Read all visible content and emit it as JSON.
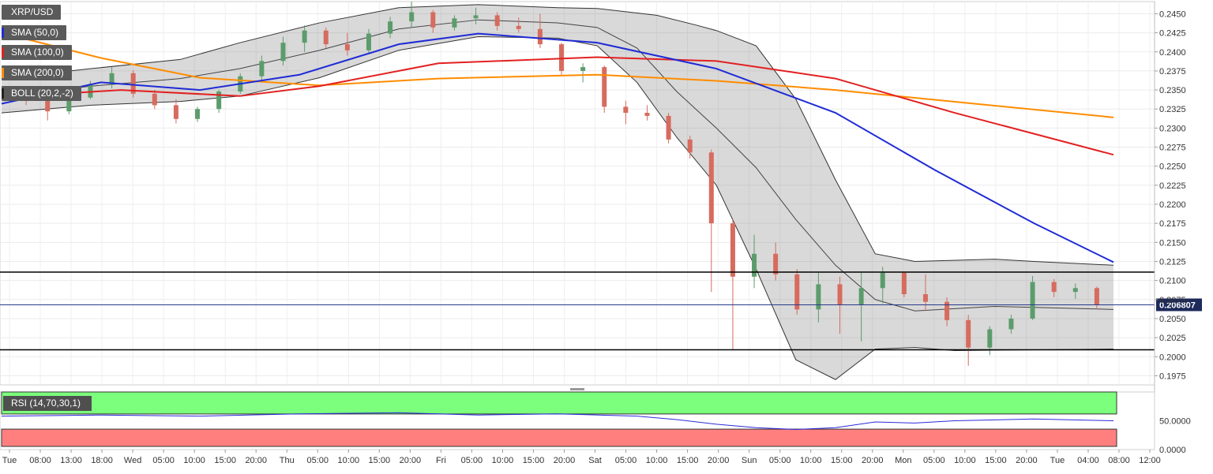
{
  "legend": {
    "symbol": "XRP/USD",
    "indicators": [
      {
        "label": "SMA (50,0)",
        "color": "#1f2bd6"
      },
      {
        "label": "SMA (100,0)",
        "color": "#e32020"
      },
      {
        "label": "SMA (200,0)",
        "color": "#ff8c00"
      },
      {
        "label": "BOLL (20,2,-2)",
        "color": "#222222"
      }
    ]
  },
  "rsi_panel": {
    "label": "RSI (14,70,30,1)",
    "ticks": [
      "50.0000",
      "0.0000"
    ],
    "overbought_color": "#7cff7c",
    "oversold_color": "#ff7f7f",
    "line_color": "#2a2adb"
  },
  "current_price": {
    "label": "0.206807",
    "value": 0.206807
  },
  "chart_data": {
    "type": "candlestick",
    "title": "XRP/USD",
    "y_axis_ticks": [
      0.245,
      0.2425,
      0.24,
      0.2375,
      0.235,
      0.2325,
      0.23,
      0.2275,
      0.225,
      0.2225,
      0.22,
      0.2175,
      0.215,
      0.2125,
      0.21,
      0.2075,
      0.205,
      0.2025,
      0.2,
      0.1975
    ],
    "y_axis_labels": [
      "0.2450",
      "0.2425",
      "0.2400",
      "0.2375",
      "0.2350",
      "0.2325",
      "0.2300",
      "0.2275",
      "0.2250",
      "0.2225",
      "0.2200",
      "0.2175",
      "0.2150",
      "0.2125",
      "0.2100",
      "0.2075",
      "0.2050",
      "0.2025",
      "0.2000",
      "0.1975"
    ],
    "ylim": [
      0.1963,
      0.2466
    ],
    "x_axis_labels": [
      "Tue",
      "08:00",
      "13:00",
      "18:00",
      "Wed",
      "05:00",
      "10:00",
      "15:00",
      "20:00",
      "Thu",
      "05:00",
      "10:00",
      "15:00",
      "20:00",
      "Fri",
      "05:00",
      "10:00",
      "15:00",
      "20:00",
      "Sat",
      "05:00",
      "10:00",
      "15:00",
      "20:00",
      "Sun",
      "05:00",
      "10:00",
      "15:00",
      "20:00",
      "Mon",
      "05:00",
      "10:00",
      "15:00",
      "20:00",
      "Tue",
      "04:00",
      "08:00",
      "12:00"
    ],
    "horizontal_levels": [
      0.2111,
      0.2009
    ],
    "ohlc_x": [
      0,
      4,
      8,
      12,
      16,
      20,
      24,
      28,
      32,
      36,
      40,
      44,
      48,
      52,
      56,
      60,
      64,
      68,
      72,
      76,
      80,
      84,
      88,
      92,
      96,
      100,
      104,
      108,
      112,
      116,
      120,
      124,
      128,
      132,
      136,
      140,
      144,
      148,
      152,
      156,
      160,
      164,
      168,
      172,
      176,
      180,
      184,
      188,
      192,
      196,
      200,
      204
    ],
    "ohlc_price": [
      [
        0.234,
        0.235,
        0.2335,
        0.2345
      ],
      [
        0.2345,
        0.2352,
        0.233,
        0.2336
      ],
      [
        0.2336,
        0.234,
        0.231,
        0.2322
      ],
      [
        0.2322,
        0.2345,
        0.2318,
        0.234
      ],
      [
        0.234,
        0.2362,
        0.2338,
        0.2358
      ],
      [
        0.2358,
        0.238,
        0.2352,
        0.2372
      ],
      [
        0.2372,
        0.2376,
        0.234,
        0.2345
      ],
      [
        0.2345,
        0.235,
        0.2325,
        0.233
      ],
      [
        0.233,
        0.2338,
        0.2306,
        0.2312
      ],
      [
        0.2312,
        0.2328,
        0.2308,
        0.2325
      ],
      [
        0.2325,
        0.235,
        0.232,
        0.2348
      ],
      [
        0.2348,
        0.2372,
        0.2345,
        0.2368
      ],
      [
        0.2368,
        0.2395,
        0.236,
        0.2388
      ],
      [
        0.2388,
        0.242,
        0.2382,
        0.2412
      ],
      [
        0.2412,
        0.2435,
        0.24,
        0.2428
      ],
      [
        0.2428,
        0.2432,
        0.2405,
        0.241
      ],
      [
        0.241,
        0.2425,
        0.2395,
        0.2402
      ],
      [
        0.2402,
        0.243,
        0.2398,
        0.2424
      ],
      [
        0.2424,
        0.2446,
        0.2418,
        0.244
      ],
      [
        0.244,
        0.2466,
        0.2432,
        0.2452
      ],
      [
        0.2452,
        0.2455,
        0.2425,
        0.2432
      ],
      [
        0.2432,
        0.2448,
        0.2428,
        0.2444
      ],
      [
        0.2444,
        0.2458,
        0.2436,
        0.2448
      ],
      [
        0.2448,
        0.2452,
        0.2428,
        0.2434
      ],
      [
        0.2434,
        0.2445,
        0.2425,
        0.243
      ],
      [
        0.243,
        0.245,
        0.2405,
        0.241
      ],
      [
        0.241,
        0.2412,
        0.237,
        0.2375
      ],
      [
        0.2375,
        0.2385,
        0.236,
        0.238
      ],
      [
        0.238,
        0.2382,
        0.232,
        0.2328
      ],
      [
        0.2328,
        0.2336,
        0.2305,
        0.232
      ],
      [
        0.232,
        0.233,
        0.231,
        0.2316
      ],
      [
        0.2316,
        0.232,
        0.228,
        0.2285
      ],
      [
        0.2285,
        0.229,
        0.226,
        0.2268
      ],
      [
        0.2268,
        0.2272,
        0.2085,
        0.2175
      ],
      [
        0.2175,
        0.218,
        0.201,
        0.2105
      ],
      [
        0.2105,
        0.216,
        0.209,
        0.2135
      ],
      [
        0.2135,
        0.215,
        0.21,
        0.2108
      ],
      [
        0.2108,
        0.2115,
        0.2055,
        0.2062
      ],
      [
        0.2062,
        0.211,
        0.2045,
        0.2095
      ],
      [
        0.2095,
        0.2105,
        0.203,
        0.2068
      ],
      [
        0.2068,
        0.211,
        0.202,
        0.209
      ],
      [
        0.209,
        0.2118,
        0.207,
        0.211
      ],
      [
        0.211,
        0.2112,
        0.2078,
        0.2082
      ],
      [
        0.2082,
        0.2108,
        0.206,
        0.2072
      ],
      [
        0.2072,
        0.2078,
        0.204,
        0.2048
      ],
      [
        0.2048,
        0.2055,
        0.1988,
        0.2012
      ],
      [
        0.2012,
        0.204,
        0.2002,
        0.2036
      ],
      [
        0.2036,
        0.2055,
        0.203,
        0.205
      ],
      [
        0.205,
        0.2106,
        0.2048,
        0.2098
      ],
      [
        0.2098,
        0.2102,
        0.2078,
        0.2085
      ],
      [
        0.2085,
        0.2096,
        0.2076,
        0.209
      ],
      [
        0.209,
        0.2092,
        0.2062,
        0.2068
      ]
    ],
    "sma50": [
      [
        0,
        0.2332
      ],
      [
        50,
        0.236
      ],
      [
        100,
        0.235
      ],
      [
        150,
        0.237
      ],
      [
        200,
        0.241
      ],
      [
        240,
        0.2424
      ],
      [
        300,
        0.2412
      ],
      [
        360,
        0.2378
      ],
      [
        420,
        0.232
      ],
      [
        470,
        0.2245
      ],
      [
        520,
        0.2175
      ],
      [
        560,
        0.2124
      ]
    ],
    "sma100": [
      [
        0,
        0.234
      ],
      [
        60,
        0.235
      ],
      [
        120,
        0.2342
      ],
      [
        160,
        0.2355
      ],
      [
        220,
        0.2385
      ],
      [
        300,
        0.2393
      ],
      [
        360,
        0.2388
      ],
      [
        420,
        0.2365
      ],
      [
        480,
        0.232
      ],
      [
        560,
        0.2265
      ]
    ],
    "sma200": [
      [
        0,
        0.2425
      ],
      [
        50,
        0.2392
      ],
      [
        100,
        0.2366
      ],
      [
        160,
        0.2356
      ],
      [
        220,
        0.2365
      ],
      [
        300,
        0.237
      ],
      [
        360,
        0.2362
      ],
      [
        420,
        0.235
      ],
      [
        490,
        0.2332
      ],
      [
        560,
        0.2314
      ]
    ],
    "bollinger_upper": [
      [
        0,
        0.2365
      ],
      [
        45,
        0.2378
      ],
      [
        90,
        0.239
      ],
      [
        120,
        0.2412
      ],
      [
        160,
        0.2438
      ],
      [
        200,
        0.2458
      ],
      [
        240,
        0.2462
      ],
      [
        280,
        0.2458
      ],
      [
        300,
        0.2457
      ],
      [
        330,
        0.2448
      ],
      [
        350,
        0.2435
      ],
      [
        360,
        0.2428
      ],
      [
        380,
        0.2408
      ],
      [
        400,
        0.2338
      ],
      [
        420,
        0.2232
      ],
      [
        440,
        0.2135
      ],
      [
        460,
        0.2125
      ],
      [
        500,
        0.2128
      ],
      [
        520,
        0.2125
      ],
      [
        560,
        0.212
      ]
    ],
    "bollinger_middle": [
      [
        0,
        0.2342
      ],
      [
        45,
        0.2355
      ],
      [
        90,
        0.2365
      ],
      [
        120,
        0.2378
      ],
      [
        160,
        0.2402
      ],
      [
        200,
        0.243
      ],
      [
        240,
        0.2442
      ],
      [
        280,
        0.2438
      ],
      [
        300,
        0.2432
      ],
      [
        320,
        0.2405
      ],
      [
        340,
        0.2348
      ],
      [
        360,
        0.23
      ],
      [
        380,
        0.2248
      ],
      [
        400,
        0.218
      ],
      [
        420,
        0.212
      ],
      [
        440,
        0.2075
      ],
      [
        460,
        0.206
      ],
      [
        500,
        0.2066
      ],
      [
        560,
        0.2062
      ]
    ],
    "bollinger_lower": [
      [
        0,
        0.232
      ],
      [
        45,
        0.233
      ],
      [
        90,
        0.2335
      ],
      [
        120,
        0.2342
      ],
      [
        160,
        0.2366
      ],
      [
        200,
        0.2402
      ],
      [
        240,
        0.242
      ],
      [
        280,
        0.2418
      ],
      [
        300,
        0.2408
      ],
      [
        320,
        0.236
      ],
      [
        340,
        0.2288
      ],
      [
        360,
        0.2225
      ],
      [
        380,
        0.2115
      ],
      [
        400,
        0.1996
      ],
      [
        420,
        0.197
      ],
      [
        440,
        0.201
      ],
      [
        460,
        0.2012
      ],
      [
        480,
        0.2008
      ],
      [
        560,
        0.201
      ]
    ],
    "rsi_values": [
      [
        0,
        0.58
      ],
      [
        50,
        0.6
      ],
      [
        100,
        0.58
      ],
      [
        150,
        0.62
      ],
      [
        200,
        0.64
      ],
      [
        240,
        0.6
      ],
      [
        280,
        0.62
      ],
      [
        320,
        0.58
      ],
      [
        340,
        0.52
      ],
      [
        360,
        0.44
      ],
      [
        380,
        0.38
      ],
      [
        400,
        0.35
      ],
      [
        420,
        0.38
      ],
      [
        440,
        0.48
      ],
      [
        460,
        0.46
      ],
      [
        480,
        0.5
      ],
      [
        520,
        0.53
      ],
      [
        560,
        0.5
      ]
    ],
    "rsi_levels": {
      "upper": 70,
      "lower": 30
    }
  }
}
